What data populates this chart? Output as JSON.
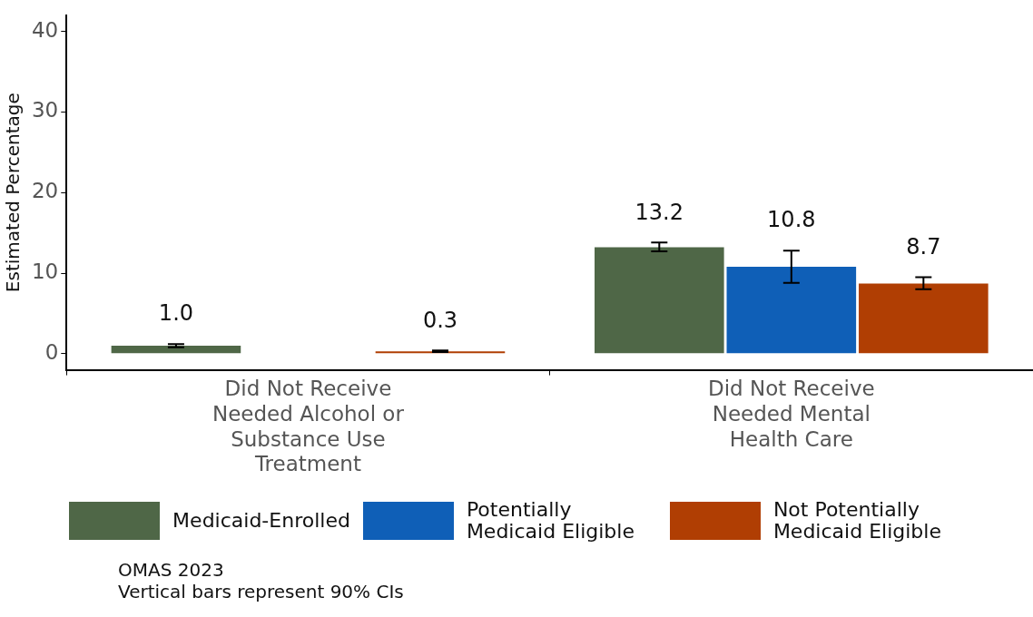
{
  "chart_data": {
    "type": "bar",
    "ylabel": "Estimated Percentage",
    "categories": [
      "Did Not Receive Needed Alcohol or Substance Use Treatment",
      "Did Not Receive Needed Mental Health Care"
    ],
    "series": [
      {
        "name": "Medicaid-Enrolled",
        "color": "#4f6747",
        "values": [
          1.0,
          13.2
        ],
        "errors": [
          [
            0.8,
            1.2
          ],
          [
            12.7,
            13.8
          ]
        ],
        "value_labels": [
          "1.0",
          "13.2"
        ]
      },
      {
        "name": "Potentially Medicaid Eligible",
        "color": "#0f5fb7",
        "values": [
          null,
          10.8
        ],
        "errors": [
          null,
          [
            8.8,
            12.8
          ]
        ],
        "value_labels": [
          null,
          "10.8"
        ]
      },
      {
        "name": "Not Potentially Medicaid Eligible",
        "color": "#b03e03",
        "values": [
          0.3,
          8.7
        ],
        "errors": [
          [
            0.2,
            0.4
          ],
          [
            8.0,
            9.5
          ]
        ],
        "value_labels": [
          "0.3",
          "8.7"
        ]
      }
    ],
    "ylim": [
      -2,
      42
    ],
    "yticks": [
      0,
      10,
      20,
      30,
      40
    ],
    "grid": false,
    "legend": "bottom",
    "annotations": [
      "OMAS 2023",
      "Vertical bars represent 90% CIs"
    ]
  }
}
